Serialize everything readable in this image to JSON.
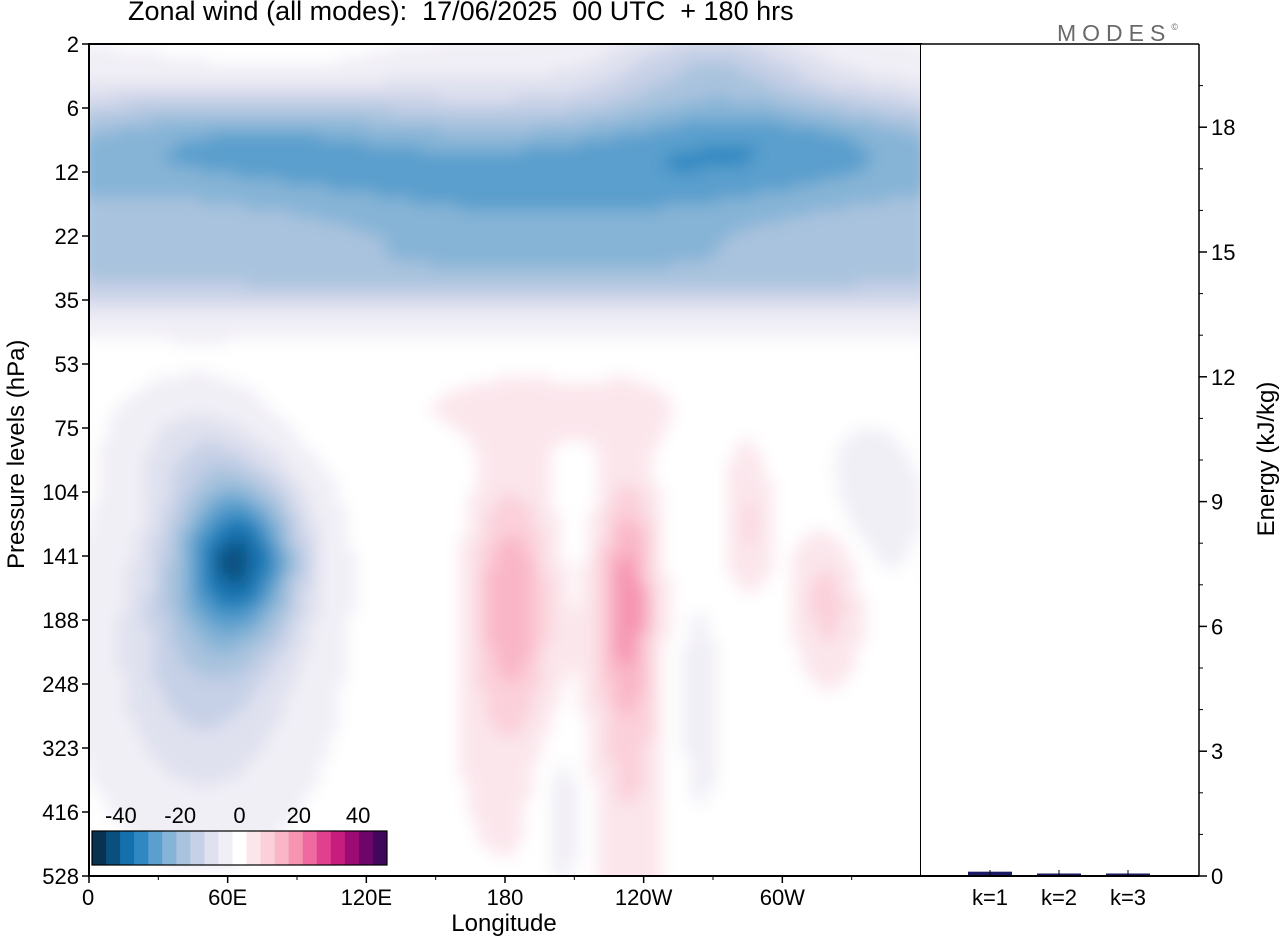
{
  "title": "Zonal wind (all modes):  17/06/2025  00 UTC  + 180 hrs",
  "logo": "MODES",
  "logo_mark": "©",
  "chart_data": [
    {
      "type": "heatmap",
      "variable": "Zonal wind",
      "xlabel": "Longitude",
      "ylabel": "Pressure levels (hPa)",
      "x_ticks": [
        "0",
        "60E",
        "120E",
        "180",
        "120W",
        "60W"
      ],
      "x_tick_degrees_east": [
        0,
        60,
        120,
        180,
        240,
        300
      ],
      "xlim_degrees_east": [
        0,
        360
      ],
      "y_ticks": [
        "2",
        "6",
        "12",
        "22",
        "35",
        "53",
        "75",
        "104",
        "141",
        "188",
        "248",
        "323",
        "416",
        "528"
      ],
      "y_reversed": true,
      "colorbar": {
        "ticks": [
          "-40",
          "-20",
          "0",
          "20",
          "40"
        ],
        "tick_values": [
          -40,
          -20,
          0,
          20,
          40
        ],
        "levels": [
          -45,
          -40,
          -35,
          -30,
          -25,
          -20,
          -15,
          -10,
          -5,
          0,
          5,
          10,
          15,
          20,
          25,
          30,
          35,
          40,
          45
        ],
        "colors": [
          "#08324f",
          "#0a4f7e",
          "#1470ac",
          "#2f88c1",
          "#5a9fcd",
          "#86b4d6",
          "#a9c3de",
          "#c6d0e6",
          "#dfe1ef",
          "#f1eff6",
          "#ffffff",
          "#fbe6ec",
          "#fbd0da",
          "#f9b6c6",
          "#f694b2",
          "#ee6aa0",
          "#e0408e",
          "#c61d7f",
          "#9e0a74",
          "#6e0669",
          "#41075c"
        ]
      },
      "grid": false,
      "features": [
        {
          "label": "easterly jet",
          "level_range_hpa": [
            8,
            40
          ],
          "lon_range_degrees_east": [
            0,
            360
          ],
          "min_value": -40
        },
        {
          "label": "easterly core",
          "level_range_hpa": [
            104,
            248
          ],
          "lon_range_degrees_east": [
            35,
            95
          ],
          "min_value": -35
        },
        {
          "label": "westerly cores",
          "level_range_hpa": [
            104,
            323
          ],
          "lon_range_degrees_east": [
            165,
            330
          ],
          "max_value": 20
        }
      ]
    },
    {
      "type": "bar",
      "ylabel": "Energy (kJ/kg)",
      "categories": [
        "k=1",
        "k=2",
        "k=3"
      ],
      "values": [
        0.08,
        0.03,
        0.02
      ],
      "ylim": [
        0,
        20
      ],
      "y_ticks": [
        "0",
        "3",
        "6",
        "9",
        "12",
        "15",
        "18"
      ],
      "y_tick_values": [
        0,
        3,
        6,
        9,
        12,
        15,
        18
      ],
      "bar_color": "#1a1a66"
    }
  ]
}
